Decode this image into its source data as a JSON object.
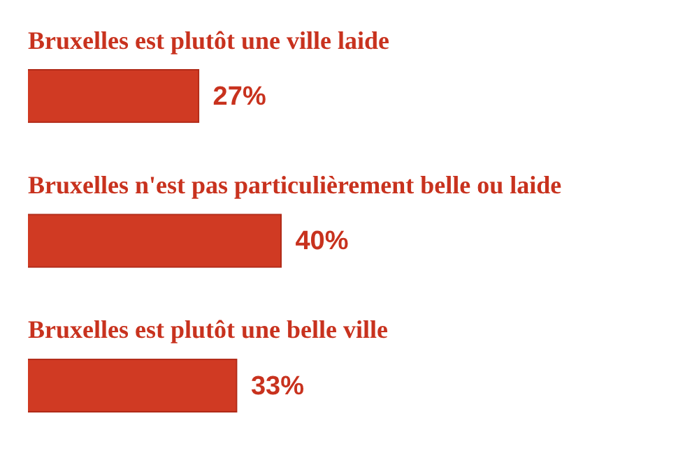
{
  "chart_data": {
    "type": "bar",
    "orientation": "horizontal",
    "categories": [
      "Bruxelles est plutôt une ville laide",
      "Bruxelles n'est pas particulièrement belle ou laide",
      "Bruxelles est plutôt une belle ville"
    ],
    "values": [
      27,
      40,
      33
    ],
    "color": "#d03a23",
    "value_labels": [
      "27%",
      "40%",
      "33%"
    ],
    "tick_labels": false,
    "legend": false
  }
}
